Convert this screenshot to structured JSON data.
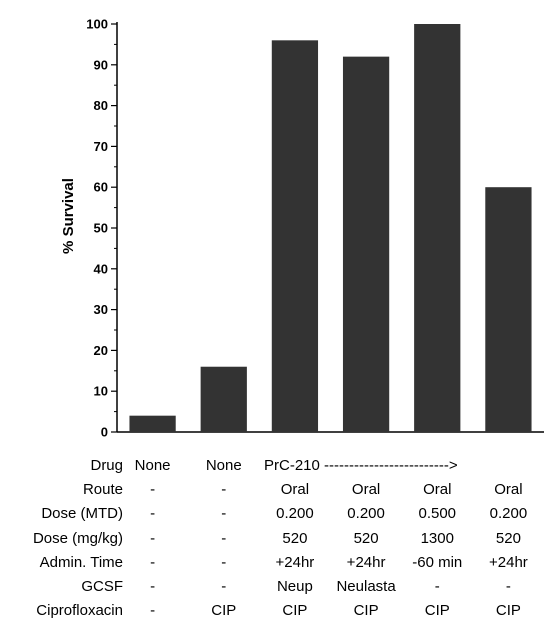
{
  "chart_data": {
    "type": "bar",
    "ylabel": "% Survival",
    "ylim": [
      0,
      100
    ],
    "yticks": [
      0,
      10,
      20,
      30,
      40,
      50,
      60,
      70,
      80,
      90,
      100
    ],
    "minor_ticks": true,
    "grid": false,
    "bar_color": "#333333",
    "values": [
      4,
      16,
      96,
      92,
      100,
      60
    ]
  },
  "table": {
    "rows": [
      {
        "label": "Drug",
        "cells": [
          "None",
          "None",
          "",
          "",
          "",
          ""
        ],
        "span_text": "PrC-210 ------------------------->"
      },
      {
        "label": "Route",
        "cells": [
          "-",
          "-",
          "Oral",
          "Oral",
          "Oral",
          "Oral"
        ]
      },
      {
        "label": "Dose (MTD)",
        "cells": [
          "-",
          "-",
          "0.200",
          "0.200",
          "0.500",
          "0.200"
        ]
      },
      {
        "label": "Dose (mg/kg)",
        "cells": [
          "-",
          "-",
          "520",
          "520",
          "1300",
          "520"
        ]
      },
      {
        "label": "Admin. Time",
        "cells": [
          "-",
          "-",
          "+24hr",
          "+24hr",
          "-60 min",
          "+24hr"
        ]
      },
      {
        "label": "GCSF",
        "cells": [
          "-",
          "-",
          "Neup",
          "Neulasta",
          "-",
          "-"
        ]
      },
      {
        "label": "Ciprofloxacin",
        "cells": [
          "-",
          "CIP",
          "CIP",
          "CIP",
          "CIP",
          "CIP"
        ]
      }
    ]
  }
}
